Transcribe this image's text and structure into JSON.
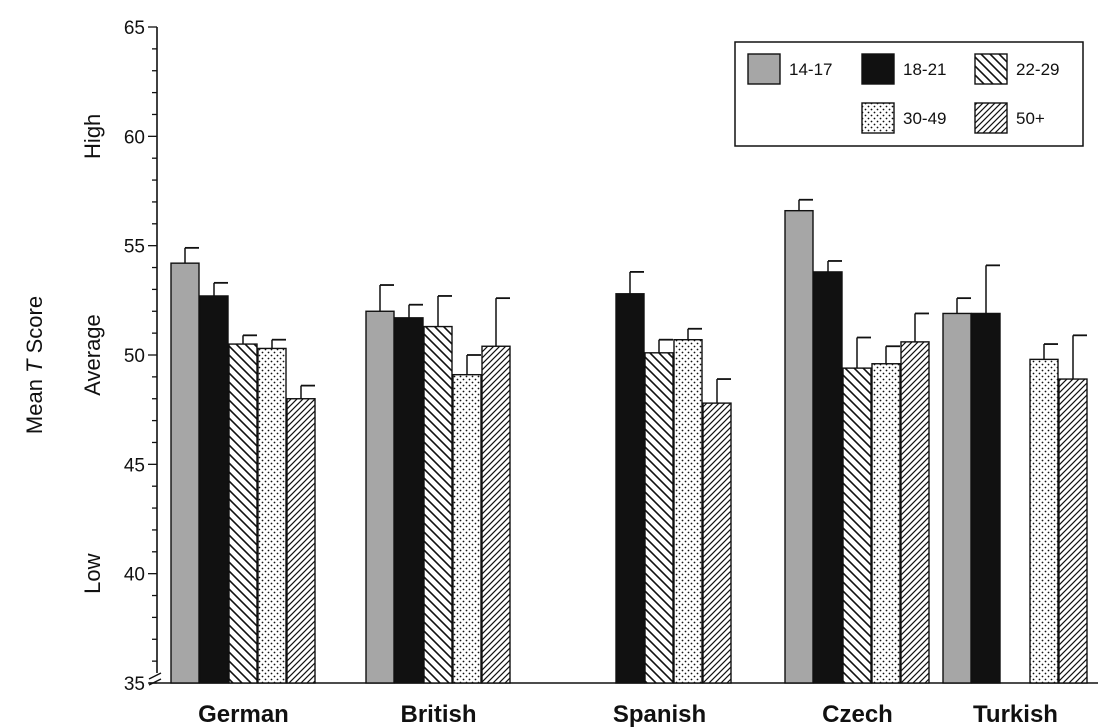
{
  "chart_data": {
    "type": "bar",
    "title": "",
    "ylabel": "Mean T Score",
    "ylabel_parts": [
      "Mean ",
      "T",
      " Score"
    ],
    "ylim": [
      35,
      65
    ],
    "yticks": [
      35,
      40,
      45,
      50,
      55,
      60,
      65
    ],
    "ytick_labels": [
      "35",
      "40",
      "45",
      "50",
      "55",
      "60",
      "65"
    ],
    "y_bands": [
      {
        "label": "High",
        "value": 60
      },
      {
        "label": "Average",
        "value": 50
      },
      {
        "label": "Low",
        "value": 40
      }
    ],
    "categories": [
      "German",
      "British",
      "Spanish",
      "Czech",
      "Turkish"
    ],
    "legend_placement": "top-right",
    "grid": false,
    "series": [
      {
        "name": "14-17",
        "pattern": "solid-gray",
        "color": "#a6a6a6",
        "values": [
          54.2,
          52.0,
          null,
          56.6,
          51.9
        ],
        "errors": [
          0.7,
          1.2,
          null,
          0.5,
          0.7
        ]
      },
      {
        "name": "18-21",
        "pattern": "solid-black",
        "color": "#111111",
        "values": [
          52.7,
          51.7,
          52.8,
          53.8,
          51.9
        ],
        "errors": [
          0.6,
          0.6,
          1.0,
          0.5,
          2.2
        ]
      },
      {
        "name": "22-29",
        "pattern": "back-diagonal",
        "color": "#111111",
        "values": [
          50.5,
          51.3,
          50.1,
          49.4,
          null
        ],
        "errors": [
          0.4,
          1.4,
          0.6,
          1.4,
          null
        ]
      },
      {
        "name": "30-49",
        "pattern": "dots",
        "color": "#111111",
        "values": [
          50.3,
          49.1,
          50.7,
          49.6,
          49.8
        ],
        "errors": [
          0.4,
          0.9,
          0.5,
          0.8,
          0.7
        ]
      },
      {
        "name": "50+",
        "pattern": "forward-diagonal",
        "color": "#111111",
        "values": [
          48.0,
          50.4,
          47.8,
          50.6,
          48.9
        ],
        "errors": [
          0.6,
          2.2,
          1.1,
          1.3,
          2.0
        ]
      }
    ]
  }
}
